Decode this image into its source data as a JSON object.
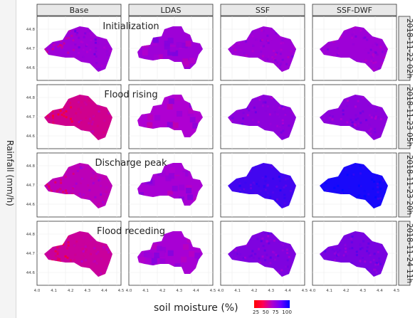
{
  "columns": [
    "Base",
    "LDAS",
    "SSF",
    "SSF-DWF"
  ],
  "rows": [
    "2018-11-22 02h",
    "2018-11-23 05h",
    "2018-11-23 20h",
    "2018-11-24 11h"
  ],
  "annotations": [
    "Initialization",
    "Flood rising",
    "Discharge peak",
    "Flood receding"
  ],
  "y_ticks": [
    "44.8",
    "44.7",
    "44.6"
  ],
  "x_ticks": [
    "4.0",
    "4.1",
    "4.2",
    "4.3",
    "4.4",
    "4.5"
  ],
  "side_label": "Rainfall (mm/h)",
  "legend": {
    "title": "soil moisture (%)",
    "ticks": [
      "25",
      "50",
      "75",
      "100"
    ],
    "colors": [
      "#ff0000",
      "#b000cc",
      "#0000ff"
    ]
  },
  "cell_levels": [
    [
      0.55,
      0.55,
      0.55,
      0.55
    ],
    [
      0.3,
      0.5,
      0.6,
      0.6
    ],
    [
      0.42,
      0.52,
      0.82,
      0.94
    ],
    [
      0.34,
      0.52,
      0.64,
      0.66
    ]
  ],
  "colors": {
    "strip_fill": "#e8e8e8",
    "panel_bg": "#ffffff",
    "grid": "#ebebeb"
  }
}
